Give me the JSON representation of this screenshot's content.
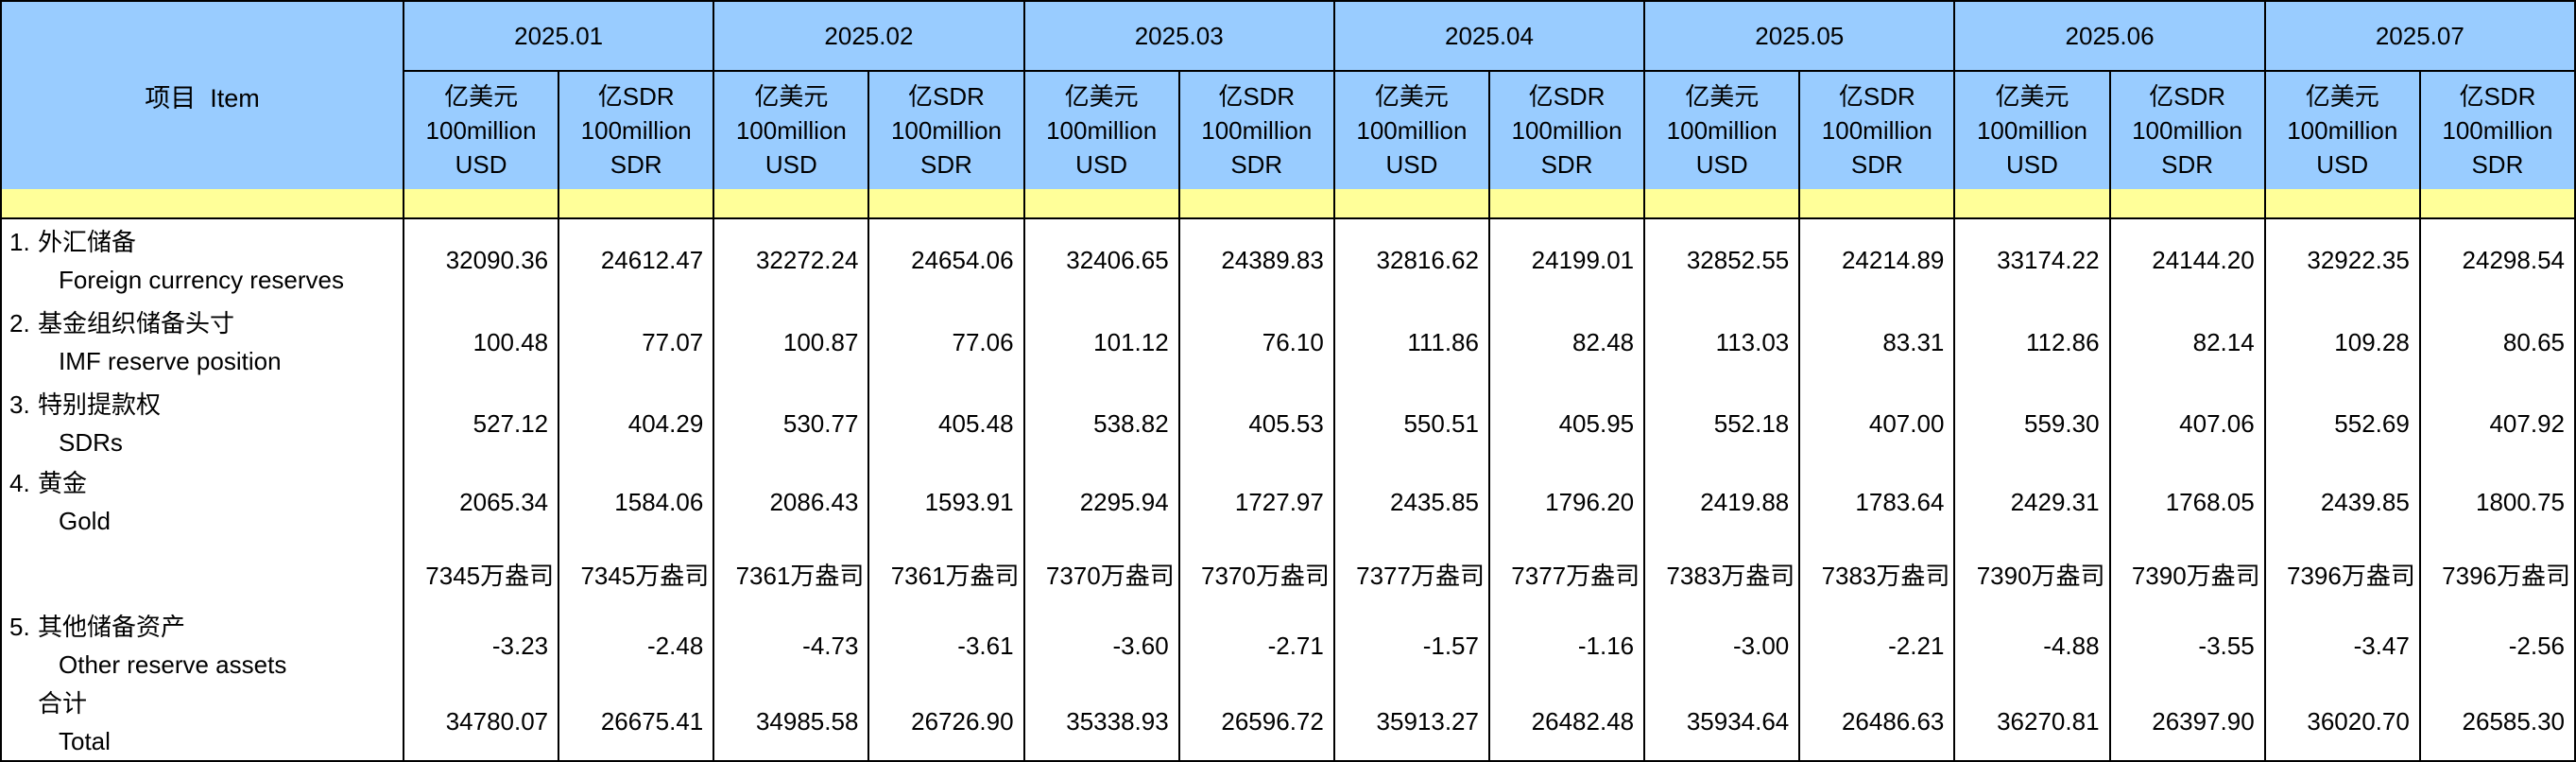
{
  "colors": {
    "header_blue": "#99CCFF",
    "spacer_yellow": "#FFFF99"
  },
  "table": {
    "item_header": "项目  Item",
    "months": [
      "2025.01",
      "2025.02",
      "2025.03",
      "2025.04",
      "2025.05",
      "2025.06",
      "2025.07"
    ],
    "unit_usd": "亿美元\n100million\nUSD",
    "unit_sdr": "亿SDR\n100million\nSDR",
    "rows": [
      {
        "no": "1.",
        "cn": "外汇储备",
        "en": "Foreign currency reserves",
        "values": [
          "32090.36",
          "24612.47",
          "32272.24",
          "24654.06",
          "32406.65",
          "24389.83",
          "32816.62",
          "24199.01",
          "32852.55",
          "24214.89",
          "33174.22",
          "24144.20",
          "32922.35",
          "24298.54"
        ]
      },
      {
        "no": "2.",
        "cn": "基金组织储备头寸",
        "en": "IMF reserve position",
        "values": [
          "100.48",
          "77.07",
          "100.87",
          "77.06",
          "101.12",
          "76.10",
          "111.86",
          "82.48",
          "113.03",
          "83.31",
          "112.86",
          "82.14",
          "109.28",
          "80.65"
        ]
      },
      {
        "no": "3.",
        "cn": "特别提款权",
        "en": "SDRs",
        "values": [
          "527.12",
          "404.29",
          "530.77",
          "405.48",
          "538.82",
          "405.53",
          "550.51",
          "405.95",
          "552.18",
          "407.00",
          "559.30",
          "407.06",
          "552.69",
          "407.92"
        ]
      },
      {
        "no": "4.",
        "cn": "黄金",
        "en": "Gold",
        "values": [
          "2065.34",
          "1584.06",
          "2086.43",
          "1593.91",
          "2295.94",
          "1727.97",
          "2435.85",
          "1796.20",
          "2419.88",
          "1783.64",
          "2429.31",
          "1768.05",
          "2439.85",
          "1800.75"
        ]
      },
      {
        "sub": true,
        "values": [
          "7345万盎司",
          "7345万盎司",
          "7361万盎司",
          "7361万盎司",
          "7370万盎司",
          "7370万盎司",
          "7377万盎司",
          "7377万盎司",
          "7383万盎司",
          "7383万盎司",
          "7390万盎司",
          "7390万盎司",
          "7396万盎司",
          "7396万盎司"
        ]
      },
      {
        "no": "5.",
        "cn": "其他储备资产",
        "en": "Other reserve assets",
        "values": [
          "-3.23",
          "-2.48",
          "-4.73",
          "-3.61",
          "-3.60",
          "-2.71",
          "-1.57",
          "-1.16",
          "-3.00",
          "-2.21",
          "-4.88",
          "-3.55",
          "-3.47",
          "-2.56"
        ]
      },
      {
        "no": "",
        "cn": "合计",
        "en": "Total",
        "values": [
          "34780.07",
          "26675.41",
          "34985.58",
          "26726.90",
          "35338.93",
          "26596.72",
          "35913.27",
          "26482.48",
          "35934.64",
          "26486.63",
          "36270.81",
          "26397.90",
          "36020.70",
          "26585.30"
        ]
      }
    ]
  }
}
